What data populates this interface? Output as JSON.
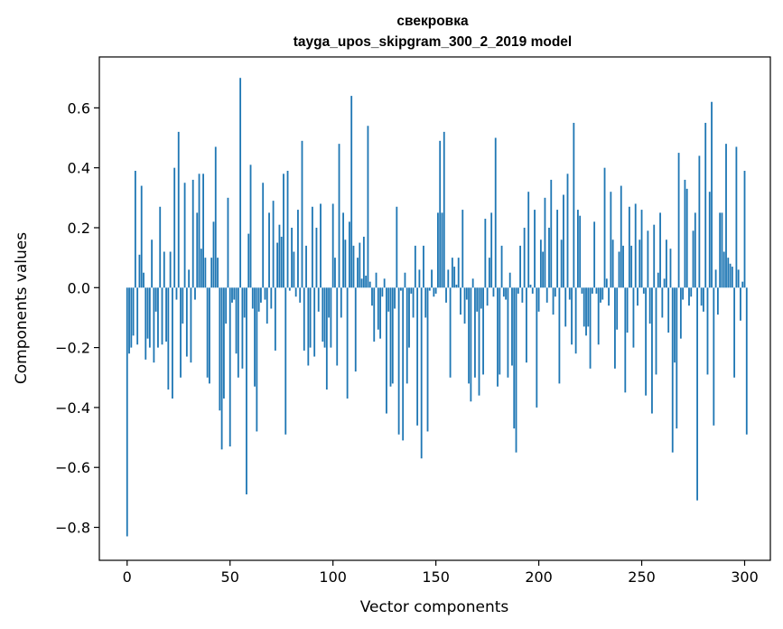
{
  "chart_data": {
    "type": "bar",
    "title": "свекровка",
    "subtitle": "tayga_upos_skipgram_300_2_2019 model",
    "xlabel": "Vector components",
    "ylabel": "Components values",
    "xlim": [
      -13.5,
      312.5
    ],
    "ylim": [
      -0.91,
      0.77
    ],
    "x_ticks": [
      0,
      50,
      100,
      150,
      200,
      250,
      300
    ],
    "y_ticks": [
      -0.8,
      -0.6,
      -0.4,
      -0.2,
      0.0,
      0.2,
      0.4,
      0.6
    ],
    "y_tick_labels": [
      "−0.8",
      "−0.6",
      "−0.4",
      "−0.2",
      "0.0",
      "0.2",
      "0.4",
      "0.6"
    ],
    "bar_color": "#1f77b4",
    "grid": false,
    "values": [
      -0.83,
      -0.22,
      -0.2,
      -0.16,
      0.39,
      -0.19,
      0.11,
      0.34,
      0.05,
      -0.24,
      -0.17,
      -0.2,
      0.16,
      -0.25,
      -0.08,
      -0.2,
      0.27,
      -0.19,
      0.12,
      -0.18,
      -0.34,
      0.12,
      -0.37,
      0.4,
      -0.04,
      0.52,
      -0.3,
      -0.12,
      0.35,
      -0.23,
      0.06,
      -0.25,
      0.36,
      -0.04,
      0.25,
      0.38,
      0.13,
      0.38,
      0.1,
      -0.3,
      -0.32,
      0.1,
      0.22,
      0.47,
      0.1,
      -0.41,
      -0.54,
      -0.37,
      -0.12,
      0.3,
      -0.53,
      -0.05,
      -0.04,
      -0.22,
      -0.3,
      0.7,
      -0.27,
      -0.1,
      -0.69,
      0.18,
      0.41,
      -0.07,
      -0.33,
      -0.48,
      -0.08,
      -0.05,
      0.35,
      -0.04,
      -0.12,
      0.25,
      -0.07,
      0.29,
      -0.21,
      0.15,
      0.21,
      0.17,
      0.38,
      -0.49,
      0.39,
      -0.01,
      0.2,
      0.12,
      -0.03,
      0.26,
      -0.05,
      0.49,
      -0.21,
      0.14,
      -0.26,
      -0.2,
      0.27,
      -0.23,
      0.2,
      -0.08,
      0.28,
      -0.18,
      -0.2,
      -0.34,
      -0.1,
      -0.2,
      0.28,
      0.1,
      -0.26,
      0.48,
      -0.1,
      0.25,
      0.16,
      -0.37,
      0.22,
      0.64,
      0.14,
      -0.28,
      0.1,
      0.15,
      0.03,
      0.17,
      0.04,
      0.54,
      0.02,
      -0.06,
      -0.18,
      0.05,
      -0.14,
      -0.17,
      -0.03,
      0.03,
      -0.42,
      -0.08,
      -0.33,
      -0.32,
      -0.07,
      0.27,
      -0.49,
      -0.01,
      -0.51,
      0.05,
      -0.32,
      -0.2,
      -0.02,
      -0.1,
      0.14,
      -0.46,
      0.06,
      -0.57,
      0.14,
      -0.1,
      -0.48,
      -0.01,
      0.06,
      -0.03,
      -0.02,
      0.25,
      0.49,
      0.25,
      0.52,
      -0.05,
      0.06,
      -0.3,
      0.1,
      0.07,
      0.01,
      0.1,
      -0.09,
      0.26,
      -0.12,
      -0.04,
      -0.32,
      -0.38,
      0.03,
      -0.3,
      -0.08,
      -0.36,
      -0.07,
      -0.29,
      0.23,
      -0.06,
      0.1,
      0.25,
      -0.03,
      0.5,
      -0.33,
      -0.29,
      0.14,
      -0.03,
      -0.04,
      -0.3,
      0.05,
      -0.26,
      -0.47,
      -0.55,
      -0.02,
      0.14,
      -0.05,
      0.2,
      -0.25,
      0.32,
      0.01,
      -0.02,
      0.26,
      -0.4,
      -0.08,
      0.16,
      0.12,
      0.3,
      -0.05,
      0.2,
      0.36,
      -0.09,
      -0.03,
      0.26,
      -0.32,
      0.16,
      0.31,
      -0.13,
      0.38,
      -0.04,
      -0.19,
      0.55,
      -0.22,
      0.26,
      0.24,
      -0.02,
      -0.13,
      -0.16,
      -0.13,
      -0.27,
      -0.02,
      0.22,
      -0.02,
      -0.19,
      -0.05,
      -0.04,
      0.4,
      0.03,
      -0.06,
      0.32,
      0.16,
      -0.27,
      -0.14,
      0.12,
      0.34,
      0.14,
      -0.35,
      -0.15,
      0.27,
      0.14,
      -0.2,
      0.28,
      -0.06,
      0.16,
      0.26,
      -0.02,
      -0.36,
      0.19,
      -0.12,
      -0.42,
      0.21,
      -0.29,
      0.05,
      0.25,
      -0.1,
      0.03,
      0.16,
      -0.15,
      0.13,
      -0.55,
      -0.25,
      -0.47,
      0.45,
      -0.17,
      -0.04,
      0.36,
      0.33,
      -0.06,
      -0.03,
      0.19,
      0.25,
      -0.71,
      0.44,
      -0.06,
      -0.08,
      0.55,
      -0.29,
      0.32,
      0.62,
      -0.46,
      0.06,
      -0.09,
      0.25,
      0.25,
      0.12,
      0.48,
      0.1,
      0.08,
      0.07,
      -0.3,
      0.47,
      0.06,
      -0.11,
      0.02,
      0.39,
      -0.49
    ]
  }
}
